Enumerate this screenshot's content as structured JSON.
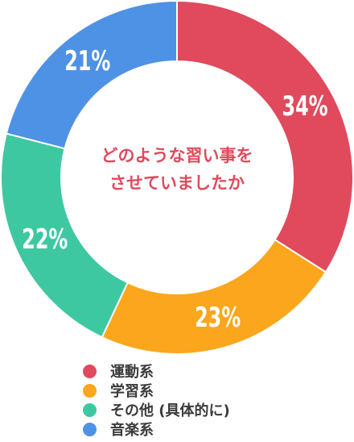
{
  "chart_data": {
    "type": "pie",
    "title_lines": [
      "どのような習い事を",
      "させていましたか"
    ],
    "categories": [
      "運動系",
      "学習系",
      "その他 (具体的に)",
      "音楽系"
    ],
    "values": [
      34,
      23,
      22,
      21
    ],
    "value_labels": [
      "34%",
      "23%",
      "22%",
      "21%"
    ],
    "colors": [
      "#e04a5c",
      "#fba61c",
      "#3ec8a2",
      "#4e92e5"
    ],
    "legend_position": "bottom-left"
  }
}
